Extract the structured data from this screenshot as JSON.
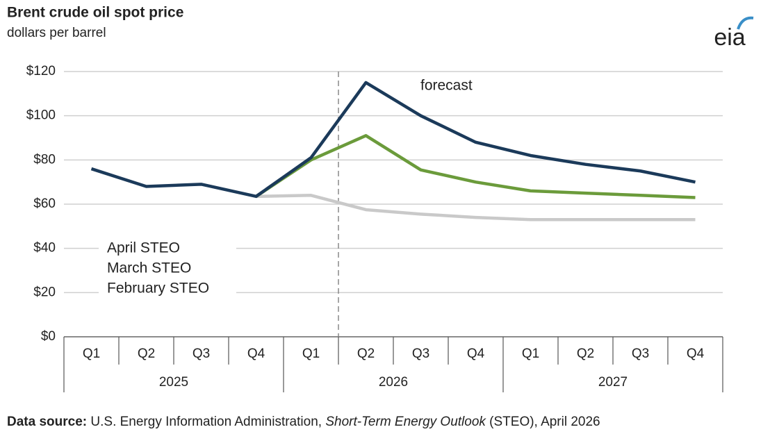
{
  "chart_data": {
    "type": "line",
    "title": "Brent crude oil spot price",
    "subtitle": "dollars per barrel",
    "logo": "eia",
    "categories": [
      "Q1",
      "Q2",
      "Q3",
      "Q4",
      "Q1",
      "Q2",
      "Q3",
      "Q4",
      "Q1",
      "Q2",
      "Q3",
      "Q4"
    ],
    "year_groups": [
      "2025",
      "2026",
      "2027"
    ],
    "series": [
      {
        "name": "April STEO",
        "color": "#1b3a5a",
        "values": [
          76,
          68,
          69,
          63.5,
          81,
          115,
          100,
          88,
          82,
          78,
          75,
          70
        ]
      },
      {
        "name": "March STEO",
        "color": "#6b9b3b",
        "values": [
          null,
          null,
          null,
          63.5,
          80,
          91,
          75.5,
          70,
          66,
          65,
          64,
          63
        ]
      },
      {
        "name": "February STEO",
        "color": "#c9c9c9",
        "values": [
          null,
          null,
          null,
          63.5,
          64,
          57.5,
          55.5,
          54,
          53,
          53,
          53,
          53
        ]
      }
    ],
    "ylim": [
      0,
      120
    ],
    "yticks": [
      {
        "value": 0,
        "label": "$0"
      },
      {
        "value": 20,
        "label": "$20"
      },
      {
        "value": 40,
        "label": "$40"
      },
      {
        "value": 60,
        "label": "$60"
      },
      {
        "value": 80,
        "label": "$80"
      },
      {
        "value": 100,
        "label": "$100"
      },
      {
        "value": 120,
        "label": "$120"
      }
    ],
    "grid": true,
    "legend": "left",
    "annotation": "forecast",
    "source": {
      "label": "Data source:",
      "text1": "U.S. Energy Information Administration, ",
      "italic": "Short-Term Energy Outlook",
      "text2": " (STEO), April 2026"
    }
  }
}
